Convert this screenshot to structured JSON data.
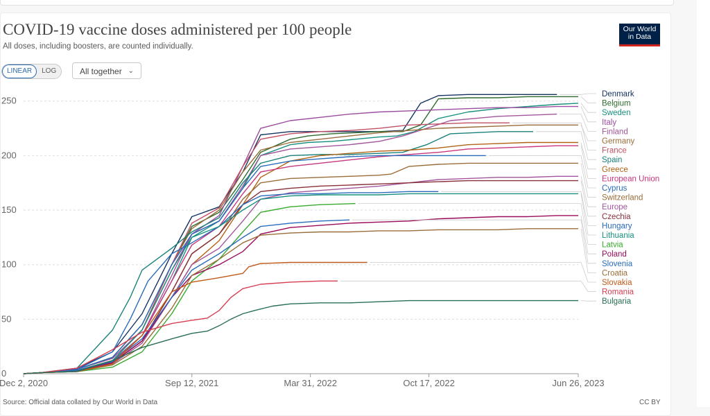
{
  "page": {
    "title": "COVID-19 vaccine doses administered per 100 people",
    "subtitle": "All doses, including boosters, are counted individually.",
    "logo_line1": "Our World",
    "logo_line2": "in Data",
    "scale_linear": "LINEAR",
    "scale_log": "LOG",
    "dropdown_label": "All together",
    "source": "Source: Official data collated by Our World in Data",
    "license": "CC BY"
  },
  "chart_data": {
    "type": "line",
    "title": "COVID-19 vaccine doses administered per 100 people",
    "xlabel": "",
    "ylabel": "",
    "ylim": [
      0,
      260
    ],
    "yticks": [
      0,
      50,
      100,
      150,
      200,
      250
    ],
    "ytick_labels": [
      "0",
      "50",
      "100",
      "150",
      "200",
      "250"
    ],
    "xlim": [
      0,
      936
    ],
    "xticks": [
      0,
      284,
      484,
      684,
      936
    ],
    "xtick_labels": [
      "Dec 2, 2020",
      "Sep 12, 2021",
      "Mar 31, 2022",
      "Oct 17, 2022",
      "Jun 26, 2023"
    ],
    "x_unit": "days since Dec 2, 2020",
    "grid": true,
    "legend_placement": "right",
    "series": [
      {
        "name": "Denmark",
        "color": "#14315f",
        "x": [
          0,
          30,
          90,
          150,
          200,
          250,
          284,
          330,
          370,
          400,
          450,
          480,
          520,
          560,
          600,
          640,
          670,
          700,
          750,
          800,
          850,
          900
        ],
        "values": [
          0,
          1,
          5,
          20,
          55,
          110,
          144,
          153,
          185,
          219,
          222,
          222,
          222,
          222,
          222,
          223,
          248,
          255,
          256,
          256,
          256,
          256
        ]
      },
      {
        "name": "Belgium",
        "color": "#2f6b2f",
        "x": [
          0,
          30,
          90,
          150,
          200,
          250,
          284,
          330,
          370,
          400,
          450,
          480,
          520,
          560,
          600,
          640,
          670,
          700,
          750,
          800,
          850,
          900,
          936
        ],
        "values": [
          0,
          1,
          4,
          15,
          45,
          100,
          135,
          148,
          178,
          203,
          215,
          218,
          220,
          221,
          222,
          222,
          228,
          252,
          253,
          253,
          254,
          254,
          254
        ]
      },
      {
        "name": "Sweden",
        "color": "#18907f",
        "x": [
          0,
          30,
          90,
          150,
          200,
          250,
          284,
          330,
          370,
          400,
          450,
          480,
          520,
          560,
          600,
          630,
          660,
          700,
          750,
          800,
          850,
          900,
          936
        ],
        "values": [
          0,
          1,
          3,
          12,
          35,
          85,
          125,
          140,
          170,
          200,
          210,
          212,
          213,
          215,
          217,
          218,
          222,
          234,
          240,
          243,
          245,
          247,
          248
        ]
      },
      {
        "name": "Italy",
        "color": "#9a4d9e",
        "x": [
          0,
          30,
          90,
          150,
          200,
          250,
          284,
          330,
          370,
          400,
          450,
          500,
          550,
          600,
          650,
          700,
          750,
          800,
          850,
          900,
          936
        ],
        "values": [
          0,
          1,
          4,
          14,
          40,
          95,
          128,
          145,
          190,
          225,
          232,
          235,
          238,
          240,
          241,
          242,
          243,
          244,
          244,
          245,
          245
        ]
      },
      {
        "name": "Finland",
        "color": "#a2559c",
        "x": [
          0,
          30,
          90,
          150,
          200,
          250,
          284,
          330,
          370,
          400,
          450,
          500,
          550,
          600,
          640,
          680,
          720,
          760,
          800,
          850,
          900
        ],
        "values": [
          0,
          1,
          3,
          11,
          35,
          90,
          128,
          140,
          172,
          200,
          206,
          208,
          210,
          213,
          218,
          225,
          232,
          234,
          236,
          237,
          238
        ]
      },
      {
        "name": "Germany",
        "color": "#996d39",
        "x": [
          0,
          30,
          90,
          150,
          200,
          250,
          284,
          330,
          370,
          400,
          450,
          500,
          550,
          600,
          650,
          700,
          750,
          800,
          850,
          900,
          936
        ],
        "values": [
          0,
          1,
          4,
          15,
          45,
          100,
          133,
          150,
          185,
          205,
          212,
          215,
          218,
          221,
          223,
          225,
          226,
          227,
          228,
          228,
          228
        ]
      },
      {
        "name": "France",
        "color": "#c15065",
        "x": [
          0,
          30,
          90,
          150,
          200,
          250,
          284,
          330,
          370,
          400,
          450,
          500,
          550,
          600,
          650,
          700,
          750,
          800,
          820
        ],
        "values": [
          0,
          1,
          3,
          12,
          40,
          100,
          138,
          152,
          190,
          215,
          220,
          222,
          223,
          225,
          228,
          229,
          230,
          230,
          230
        ]
      },
      {
        "name": "Spain",
        "color": "#18807a",
        "x": [
          0,
          30,
          90,
          150,
          180,
          200,
          250,
          284,
          330,
          370,
          400,
          450,
          500,
          550,
          600,
          640,
          680,
          720,
          760,
          800,
          860
        ],
        "values": [
          0,
          1,
          5,
          40,
          70,
          95,
          115,
          130,
          143,
          175,
          193,
          200,
          201,
          201,
          202,
          203,
          210,
          220,
          221,
          222,
          222
        ]
      },
      {
        "name": "Greece",
        "color": "#b16214",
        "x": [
          0,
          30,
          90,
          150,
          200,
          250,
          284,
          330,
          370,
          400,
          450,
          500,
          550,
          600,
          650,
          700,
          750,
          800,
          850,
          900,
          936
        ],
        "values": [
          0,
          1,
          3,
          10,
          30,
          70,
          100,
          122,
          155,
          180,
          195,
          200,
          202,
          204,
          205,
          207,
          210,
          211,
          212,
          212,
          212
        ]
      },
      {
        "name": "European Union",
        "color": "#c8357d",
        "x": [
          0,
          30,
          90,
          150,
          200,
          250,
          284,
          330,
          370,
          400,
          450,
          500,
          550,
          600,
          650,
          700,
          750,
          800,
          850,
          900,
          936
        ],
        "values": [
          0,
          1,
          3,
          11,
          35,
          85,
          118,
          135,
          165,
          185,
          190,
          193,
          196,
          199,
          201,
          203,
          206,
          207,
          208,
          209,
          209
        ]
      },
      {
        "name": "Cyprus",
        "color": "#286bbb",
        "x": [
          0,
          30,
          90,
          150,
          200,
          250,
          284,
          330,
          370,
          400,
          450,
          500,
          550,
          600,
          650,
          700,
          720,
          740,
          780
        ],
        "values": [
          0,
          1,
          4,
          15,
          45,
          100,
          128,
          140,
          170,
          190,
          195,
          197,
          199,
          200,
          200,
          200,
          200,
          200,
          200
        ]
      },
      {
        "name": "Switzerland",
        "color": "#996d39",
        "x": [
          0,
          30,
          90,
          150,
          200,
          250,
          284,
          330,
          370,
          400,
          450,
          500,
          550,
          600,
          620,
          650,
          700,
          750,
          800,
          850,
          900,
          936
        ],
        "values": [
          0,
          1,
          3,
          10,
          30,
          75,
          110,
          128,
          160,
          175,
          179,
          180,
          181,
          182,
          183,
          190,
          192,
          193,
          193,
          193,
          193,
          193
        ]
      },
      {
        "name": "Europe",
        "color": "#a2559c",
        "x": [
          0,
          30,
          90,
          150,
          200,
          250,
          284,
          330,
          370,
          400,
          450,
          500,
          550,
          600,
          650,
          700,
          750,
          800,
          850,
          900,
          936
        ],
        "values": [
          0,
          1,
          3,
          9,
          28,
          70,
          100,
          115,
          140,
          160,
          166,
          168,
          170,
          172,
          175,
          178,
          179,
          180,
          180,
          181,
          181
        ]
      },
      {
        "name": "Czechia",
        "color": "#883039",
        "x": [
          0,
          30,
          90,
          150,
          200,
          250,
          284,
          330,
          370,
          400,
          450,
          500,
          550,
          600,
          650,
          700,
          750,
          800,
          850,
          900,
          936
        ],
        "values": [
          0,
          1,
          3,
          10,
          30,
          75,
          110,
          128,
          155,
          167,
          170,
          172,
          173,
          174,
          175,
          176,
          177,
          177,
          177,
          177,
          177
        ]
      },
      {
        "name": "Hungary",
        "color": "#286bbb",
        "x": [
          0,
          30,
          90,
          150,
          180,
          210,
          250,
          284,
          330,
          370,
          400,
          450,
          500,
          550,
          600,
          650,
          700
        ],
        "values": [
          0,
          1,
          4,
          20,
          50,
          85,
          110,
          120,
          135,
          155,
          163,
          165,
          165,
          166,
          166,
          167,
          167
        ]
      },
      {
        "name": "Lithuania",
        "color": "#18907f",
        "x": [
          0,
          30,
          90,
          150,
          200,
          250,
          284,
          330,
          370,
          400,
          450,
          500,
          550,
          600,
          650,
          700,
          750,
          800,
          850,
          900,
          936
        ],
        "values": [
          0,
          1,
          3,
          12,
          40,
          95,
          125,
          135,
          150,
          160,
          163,
          164,
          164,
          164,
          165,
          165,
          165,
          165,
          165,
          165,
          165
        ]
      },
      {
        "name": "Latvia",
        "color": "#38aa2e",
        "x": [
          0,
          30,
          90,
          150,
          200,
          250,
          284,
          330,
          370,
          400,
          450,
          500,
          560
        ],
        "values": [
          0,
          1,
          2,
          6,
          20,
          55,
          85,
          105,
          130,
          148,
          153,
          155,
          156
        ]
      },
      {
        "name": "Poland",
        "color": "#9a0a5a",
        "x": [
          0,
          30,
          90,
          150,
          200,
          250,
          284,
          330,
          370,
          400,
          450,
          500,
          550,
          600,
          650,
          700,
          750,
          800,
          850,
          900,
          936
        ],
        "values": [
          0,
          1,
          3,
          10,
          30,
          70,
          90,
          100,
          112,
          128,
          134,
          136,
          138,
          139,
          140,
          142,
          143,
          144,
          144,
          145,
          145
        ]
      },
      {
        "name": "Slovenia",
        "color": "#286bbb",
        "x": [
          0,
          30,
          90,
          150,
          200,
          250,
          284,
          330,
          370,
          400,
          450,
          500,
          550
        ],
        "values": [
          0,
          1,
          3,
          11,
          32,
          70,
          95,
          110,
          125,
          135,
          138,
          140,
          141
        ]
      },
      {
        "name": "Croatia",
        "color": "#996d39",
        "x": [
          0,
          30,
          90,
          150,
          200,
          250,
          284,
          330,
          370,
          400,
          450,
          500,
          550,
          600,
          650,
          700,
          750,
          800,
          850,
          900,
          936
        ],
        "values": [
          0,
          1,
          2,
          8,
          25,
          60,
          90,
          105,
          120,
          127,
          129,
          130,
          130,
          131,
          131,
          132,
          132,
          132,
          133,
          133,
          133
        ]
      },
      {
        "name": "Slovakia",
        "color": "#c05917",
        "x": [
          0,
          30,
          90,
          150,
          200,
          250,
          284,
          330,
          370,
          380,
          400,
          450,
          500,
          580
        ],
        "values": [
          0,
          1,
          2,
          9,
          35,
          75,
          84,
          88,
          92,
          98,
          101,
          102,
          102,
          102
        ]
      },
      {
        "name": "Romania",
        "color": "#d73c50",
        "x": [
          0,
          30,
          90,
          150,
          200,
          250,
          284,
          310,
          330,
          350,
          370,
          400,
          450,
          500,
          530
        ],
        "values": [
          0,
          1,
          5,
          22,
          38,
          46,
          49,
          51,
          58,
          70,
          78,
          82,
          84,
          85,
          85
        ]
      },
      {
        "name": "Bulgaria",
        "color": "#286e53",
        "x": [
          0,
          30,
          90,
          150,
          200,
          250,
          284,
          310,
          330,
          350,
          370,
          390,
          420,
          450,
          500,
          550,
          600,
          650,
          700,
          750,
          800,
          850,
          900,
          936
        ],
        "values": [
          0,
          1,
          2,
          12,
          24,
          32,
          37,
          39,
          44,
          50,
          55,
          58,
          62,
          64,
          65,
          65,
          66,
          67,
          67,
          67,
          67,
          67,
          67,
          67
        ]
      }
    ]
  }
}
